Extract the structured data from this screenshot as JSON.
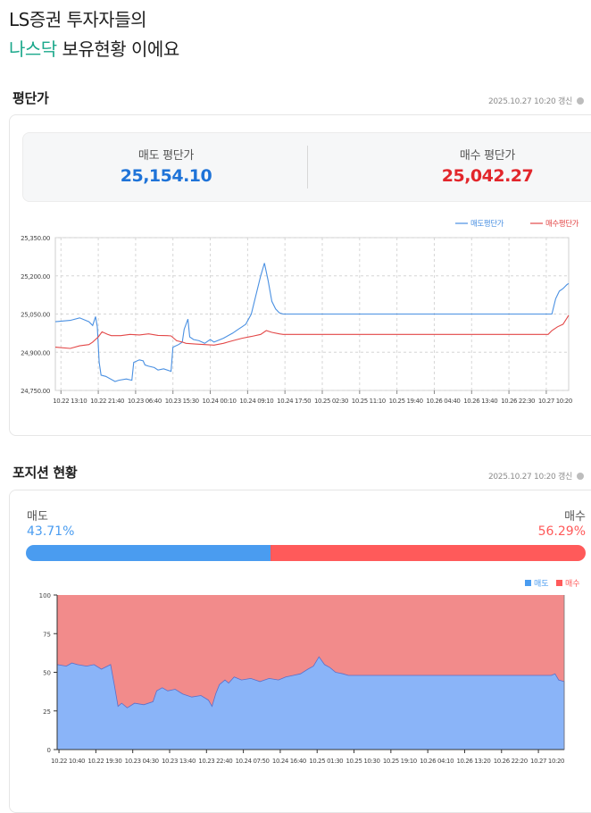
{
  "header": {
    "line1": "LS증권 투자자들의",
    "line2_accent": "나스닥",
    "line2_rest": " 보유현황 이에요"
  },
  "avg_section": {
    "title": "평단가",
    "updated": "2025.10.27 10:20 갱신",
    "sell_label": "매도 평단가",
    "sell_value": "25,154.10",
    "buy_label": "매수 평단가",
    "buy_value": "25,042.27"
  },
  "position_section": {
    "title": "포지션 현황",
    "updated": "2025.10.27 10:20 갱신",
    "sell_label": "매도",
    "sell_pct": "43.71%",
    "buy_label": "매수",
    "buy_pct": "56.29%",
    "sell_ratio": 43.71
  },
  "colors": {
    "sell_line": "#4a90e2",
    "buy_line": "#e34848",
    "sell_area": "#8ab4f8",
    "buy_area": "#f28b8b"
  },
  "chart_data": [
    {
      "type": "line",
      "title": "평단가",
      "legend": [
        "매도평단가",
        "매수평단가"
      ],
      "legend_position": "top-right",
      "x_ticks": [
        "10.22 13:10",
        "10.22 21:40",
        "10.23 06:40",
        "10.23 15:30",
        "10.24 00:10",
        "10.24 09:10",
        "10.24 17:50",
        "10.25 02:30",
        "10.25 11:10",
        "10.25 19:40",
        "10.26 04:40",
        "10.26 13:40",
        "10.26 22:30",
        "10.27 10:20"
      ],
      "y_ticks": [
        "24,750.00",
        "24,900.00",
        "25,050.00",
        "25,200.00",
        "25,350.00"
      ],
      "ylim": [
        24750,
        25350
      ],
      "grid": true,
      "series": [
        {
          "name": "매도평단가",
          "points": [
            [
              0,
              25020
            ],
            [
              0.8,
              25025
            ],
            [
              1.3,
              25035
            ],
            [
              1.8,
              25020
            ],
            [
              2.0,
              25005
            ],
            [
              2.15,
              25040
            ],
            [
              2.25,
              25000
            ],
            [
              2.35,
              24860
            ],
            [
              2.45,
              24810
            ],
            [
              2.7,
              24805
            ],
            [
              3.2,
              24785
            ],
            [
              3.4,
              24790
            ],
            [
              3.8,
              24795
            ],
            [
              4.1,
              24790
            ],
            [
              4.2,
              24860
            ],
            [
              4.5,
              24870
            ],
            [
              4.7,
              24866
            ],
            [
              4.8,
              24850
            ],
            [
              5.0,
              24845
            ],
            [
              5.3,
              24840
            ],
            [
              5.5,
              24830
            ],
            [
              5.8,
              24835
            ],
            [
              6.2,
              24825
            ],
            [
              6.3,
              24920
            ],
            [
              6.6,
              24930
            ],
            [
              6.8,
              24940
            ],
            [
              6.9,
              24990
            ],
            [
              7.1,
              25030
            ],
            [
              7.2,
              24960
            ],
            [
              7.4,
              24950
            ],
            [
              7.7,
              24945
            ],
            [
              8.0,
              24935
            ],
            [
              8.3,
              24950
            ],
            [
              8.5,
              24940
            ],
            [
              9.0,
              24955
            ],
            [
              9.5,
              24975
            ],
            [
              9.8,
              24990
            ],
            [
              10.0,
              25000
            ],
            [
              10.2,
              25010
            ],
            [
              10.5,
              25050
            ],
            [
              10.7,
              25110
            ],
            [
              11.0,
              25200
            ],
            [
              11.2,
              25250
            ],
            [
              11.4,
              25180
            ],
            [
              11.6,
              25100
            ],
            [
              11.8,
              25070
            ],
            [
              12.0,
              25055
            ],
            [
              12.2,
              25050
            ],
            [
              13.0,
              25050
            ],
            [
              14.0,
              25050
            ],
            [
              15.0,
              25050
            ],
            [
              16.0,
              25050
            ],
            [
              17.0,
              25050
            ],
            [
              18.0,
              25050
            ],
            [
              19.0,
              25050
            ],
            [
              20.0,
              25050
            ],
            [
              21.0,
              25050
            ],
            [
              22.0,
              25050
            ],
            [
              23.0,
              25050
            ],
            [
              24.0,
              25050
            ],
            [
              24.3,
              25050
            ],
            [
              25.4,
              25050
            ],
            [
              26.4,
              25050
            ],
            [
              26.6,
              25050
            ],
            [
              26.8,
              25110
            ],
            [
              27.0,
              25140
            ],
            [
              27.2,
              25150
            ],
            [
              27.4,
              25165
            ],
            [
              27.5,
              25170
            ]
          ]
        },
        {
          "name": "매수평단가",
          "points": [
            [
              0,
              24920
            ],
            [
              0.8,
              24915
            ],
            [
              1.3,
              24925
            ],
            [
              1.8,
              24930
            ],
            [
              2.0,
              24940
            ],
            [
              2.3,
              24960
            ],
            [
              2.5,
              24980
            ],
            [
              2.8,
              24970
            ],
            [
              3.0,
              24965
            ],
            [
              3.5,
              24965
            ],
            [
              4.0,
              24970
            ],
            [
              4.5,
              24968
            ],
            [
              5.0,
              24972
            ],
            [
              5.5,
              24966
            ],
            [
              6.0,
              24965
            ],
            [
              6.2,
              24964
            ],
            [
              6.5,
              24945
            ],
            [
              6.8,
              24940
            ],
            [
              7.0,
              24935
            ],
            [
              7.5,
              24932
            ],
            [
              8.0,
              24930
            ],
            [
              8.5,
              24928
            ],
            [
              9.0,
              24935
            ],
            [
              9.5,
              24945
            ],
            [
              10.0,
              24955
            ],
            [
              10.5,
              24962
            ],
            [
              11.0,
              24970
            ],
            [
              11.3,
              24985
            ],
            [
              11.6,
              24978
            ],
            [
              12.0,
              24972
            ],
            [
              12.2,
              24970
            ],
            [
              13.0,
              24970
            ],
            [
              14.0,
              24970
            ],
            [
              15.0,
              24970
            ],
            [
              16.0,
              24970
            ],
            [
              17.0,
              24970
            ],
            [
              18.0,
              24970
            ],
            [
              19.0,
              24970
            ],
            [
              20.0,
              24970
            ],
            [
              21.0,
              24970
            ],
            [
              22.0,
              24970
            ],
            [
              23.0,
              24970
            ],
            [
              24.0,
              24970
            ],
            [
              25.0,
              24970
            ],
            [
              26.4,
              24970
            ],
            [
              26.6,
              24985
            ],
            [
              26.9,
              25000
            ],
            [
              27.2,
              25010
            ],
            [
              27.5,
              25045
            ]
          ]
        }
      ]
    },
    {
      "type": "area",
      "title": "포지션 현황",
      "legend": [
        "매도",
        "매수"
      ],
      "legend_position": "top-right",
      "stacked_percent": true,
      "x_ticks": [
        "10.22 10:40",
        "10.22 19:30",
        "10.23 04:30",
        "10.23 13:40",
        "10.23 22:40",
        "10.24 07:50",
        "10.24 16:40",
        "10.25 01:30",
        "10.25 10:30",
        "10.25 19:10",
        "10.26 04:10",
        "10.26 13:20",
        "10.26 22:20",
        "10.27 10:20"
      ],
      "y_ticks": [
        "0",
        "25",
        "50",
        "75",
        "100"
      ],
      "ylim": [
        0,
        100
      ],
      "grid": true,
      "sell_series": [
        [
          0,
          55
        ],
        [
          0.5,
          54
        ],
        [
          0.8,
          56
        ],
        [
          1.1,
          55
        ],
        [
          1.6,
          54
        ],
        [
          2.0,
          55
        ],
        [
          2.4,
          52
        ],
        [
          2.9,
          55
        ],
        [
          3.1,
          42
        ],
        [
          3.3,
          28
        ],
        [
          3.5,
          30
        ],
        [
          3.8,
          27
        ],
        [
          4.2,
          30
        ],
        [
          4.7,
          29
        ],
        [
          5.2,
          31
        ],
        [
          5.4,
          38
        ],
        [
          5.7,
          40
        ],
        [
          6.0,
          38
        ],
        [
          6.4,
          39
        ],
        [
          6.8,
          36
        ],
        [
          7.3,
          34
        ],
        [
          7.8,
          35
        ],
        [
          8.2,
          32
        ],
        [
          8.4,
          28
        ],
        [
          8.6,
          36
        ],
        [
          8.8,
          42
        ],
        [
          9.1,
          45
        ],
        [
          9.3,
          43
        ],
        [
          9.6,
          47
        ],
        [
          10.0,
          45
        ],
        [
          10.5,
          46
        ],
        [
          11.0,
          44
        ],
        [
          11.5,
          46
        ],
        [
          12.0,
          45
        ],
        [
          12.4,
          47
        ],
        [
          12.8,
          48
        ],
        [
          13.2,
          49
        ],
        [
          13.6,
          52
        ],
        [
          13.9,
          54
        ],
        [
          14.2,
          60
        ],
        [
          14.5,
          55
        ],
        [
          14.8,
          53
        ],
        [
          15.1,
          50
        ],
        [
          15.5,
          49
        ],
        [
          15.8,
          48
        ],
        [
          16.0,
          48
        ],
        [
          17.0,
          48
        ],
        [
          18.0,
          48
        ],
        [
          19.0,
          48
        ],
        [
          20.0,
          48
        ],
        [
          21.0,
          48
        ],
        [
          22.0,
          48
        ],
        [
          23.0,
          48
        ],
        [
          24.0,
          48
        ],
        [
          25.0,
          48
        ],
        [
          26.0,
          48
        ],
        [
          26.8,
          48
        ],
        [
          27.0,
          49
        ],
        [
          27.2,
          45
        ],
        [
          27.5,
          44
        ]
      ]
    }
  ]
}
